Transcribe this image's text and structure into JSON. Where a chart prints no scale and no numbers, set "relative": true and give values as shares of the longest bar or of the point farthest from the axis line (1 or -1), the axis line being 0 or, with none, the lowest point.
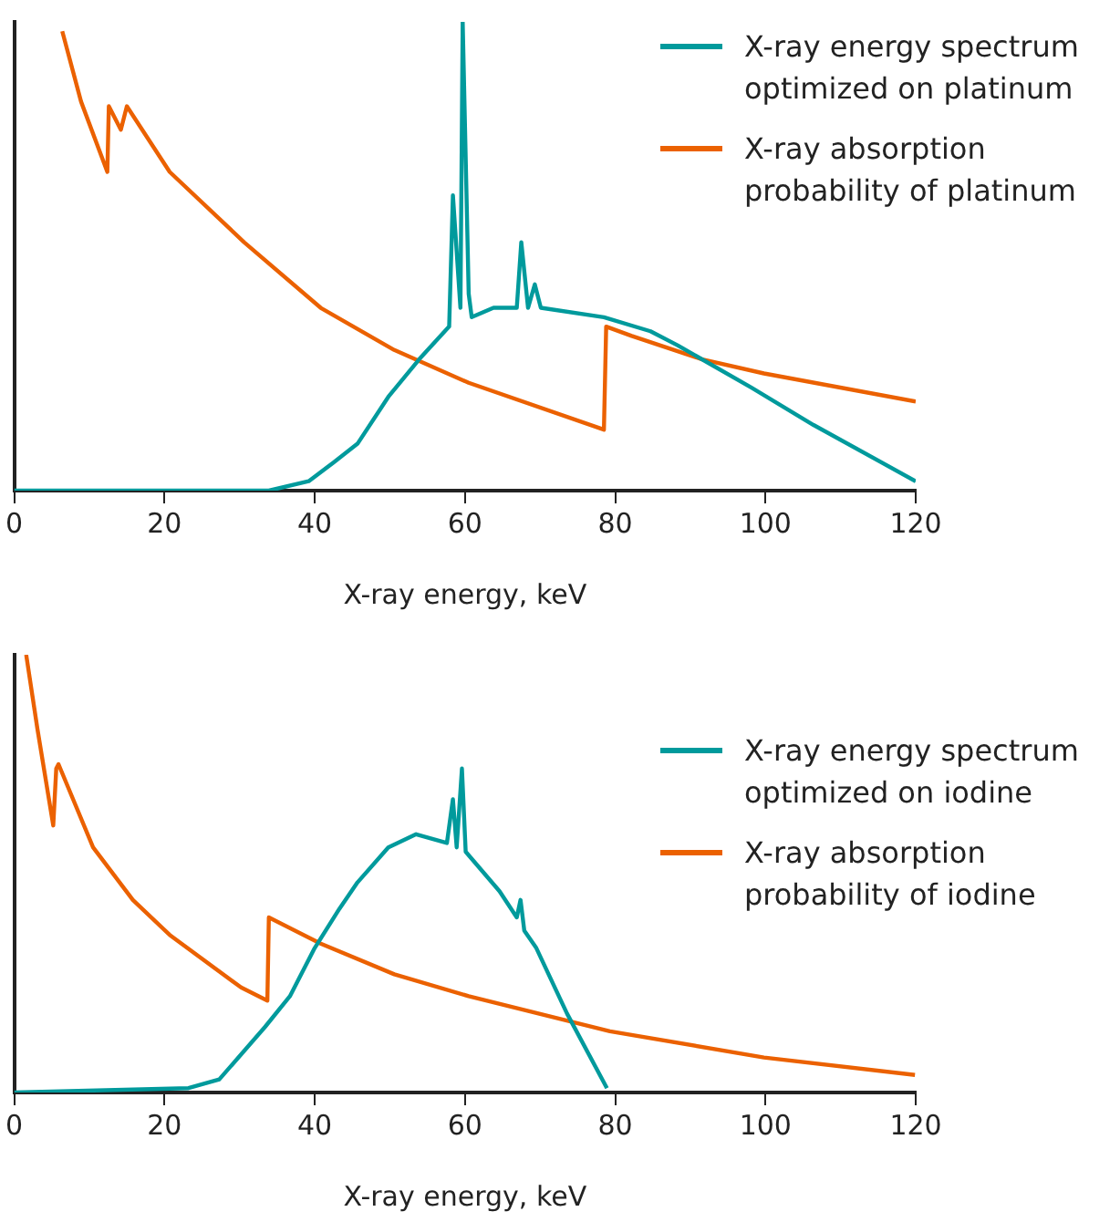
{
  "chart_data": [
    {
      "type": "line",
      "relative": true,
      "xlabel": "X-ray energy, keV",
      "xlim": [
        0,
        120
      ],
      "xticks": [
        0,
        20,
        40,
        60,
        80,
        100,
        120
      ],
      "legend": "top right",
      "grid": false,
      "marker": "none",
      "line_style": "solid",
      "series": [
        {
          "name": "X-ray energy spectrum optimized on platinum",
          "color": "#009a9c",
          "x": [
            0,
            33.9,
            39.2,
            42.5,
            45.7,
            49.8,
            53.9,
            57.9,
            58.4,
            59.4,
            59.7,
            60.5,
            60.9,
            63.8,
            66.9,
            67.5,
            68.4,
            69.3,
            70.1,
            78.5,
            84.7,
            88.3,
            98.1,
            106.4,
            120
          ],
          "values": [
            0,
            0,
            0.02,
            0.06,
            0.1,
            0.2,
            0.28,
            0.35,
            0.63,
            0.39,
            1,
            0.42,
            0.37,
            0.39,
            0.39,
            0.53,
            0.39,
            0.44,
            0.39,
            0.37,
            0.34,
            0.31,
            0.22,
            0.14,
            0.02
          ]
        },
        {
          "name": "X-ray absorption probability of platinum",
          "color": "#eb6100",
          "x": [
            6.4,
            8.9,
            12.4,
            12.6,
            14.2,
            15,
            20.7,
            30.6,
            40.8,
            50.6,
            60.5,
            78.5,
            78.8,
            82.2,
            91.6,
            99.8,
            120
          ],
          "values": [
            0.98,
            0.83,
            0.68,
            0.82,
            0.77,
            0.82,
            0.68,
            0.53,
            0.39,
            0.3,
            0.23,
            0.13,
            0.35,
            0.33,
            0.28,
            0.25,
            0.19
          ]
        }
      ]
    },
    {
      "type": "line",
      "relative": true,
      "xlabel": "X-ray energy, keV",
      "xlim": [
        0,
        120
      ],
      "xticks": [
        0,
        20,
        40,
        60,
        80,
        100,
        120
      ],
      "legend": "right",
      "grid": false,
      "marker": "none",
      "line_style": "solid",
      "series": [
        {
          "name": "X-ray energy spectrum optimized on iodine",
          "color": "#009a9c",
          "x": [
            0,
            23.2,
            27.3,
            33.4,
            36.7,
            40,
            43.3,
            45.7,
            49.8,
            53.5,
            57.6,
            58.4,
            58.9,
            59.6,
            60.1,
            64.6,
            66.9,
            67.4,
            67.9,
            69.5,
            73.6,
            78.9
          ],
          "values": [
            0,
            0.01,
            0.03,
            0.15,
            0.22,
            0.33,
            0.42,
            0.48,
            0.56,
            0.59,
            0.57,
            0.67,
            0.56,
            0.74,
            0.55,
            0.46,
            0.4,
            0.44,
            0.37,
            0.33,
            0.18,
            0.01
          ]
        },
        {
          "name": "X-ray absorption probability of iodine",
          "color": "#eb6100",
          "x": [
            1.6,
            3.1,
            5.2,
            5.6,
            5.9,
            10.5,
            15.8,
            20.7,
            30.2,
            33.7,
            33.9,
            40.8,
            50.6,
            60.5,
            79.3,
            99.8,
            119.9
          ],
          "values": [
            1,
            0.83,
            0.61,
            0.74,
            0.75,
            0.56,
            0.44,
            0.36,
            0.24,
            0.21,
            0.4,
            0.34,
            0.27,
            0.22,
            0.14,
            0.08,
            0.04
          ]
        }
      ]
    }
  ]
}
